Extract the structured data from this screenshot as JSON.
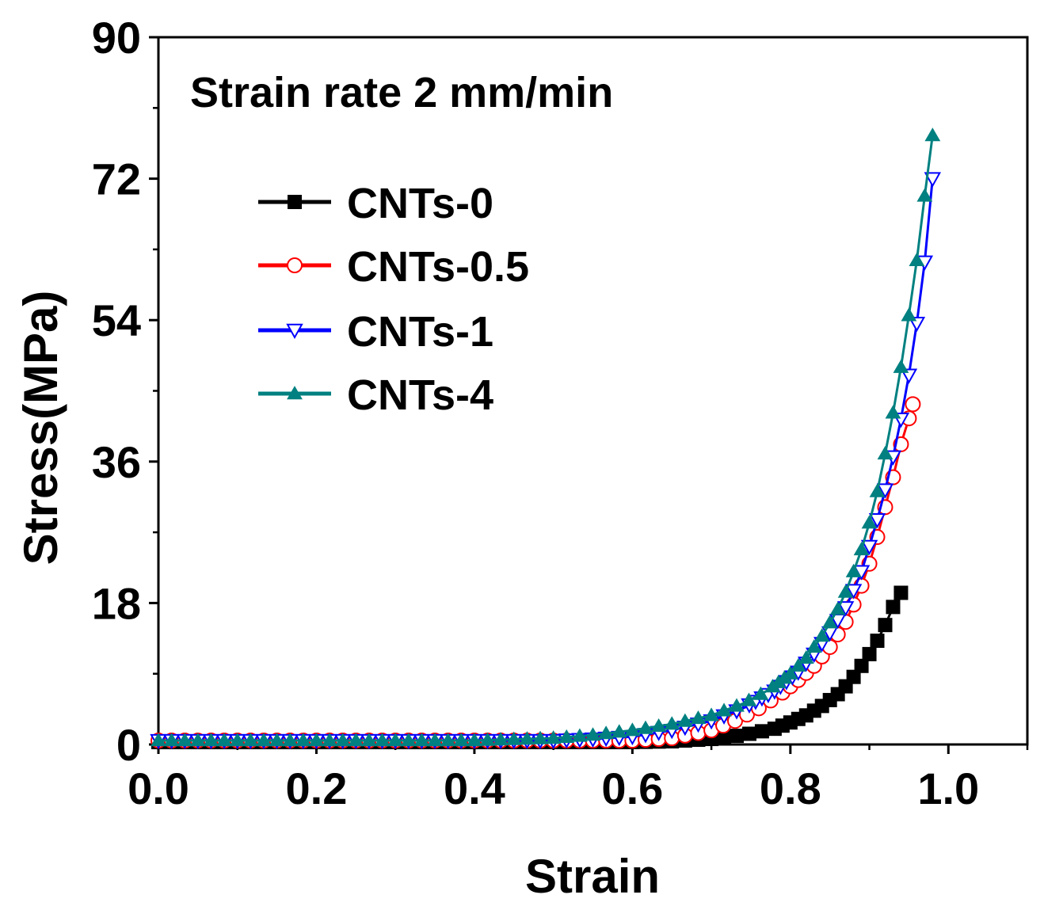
{
  "chart_data": {
    "type": "line",
    "title": "",
    "annotation": "Strain rate 2 mm/min",
    "xlabel": "Strain",
    "ylabel": "Stress(MPa)",
    "xlim": [
      0,
      1.1
    ],
    "ylim": [
      0,
      90
    ],
    "x_ticks": [
      "0.0",
      "0.2",
      "0.4",
      "0.6",
      "0.8",
      "1.0"
    ],
    "y_ticks": [
      "0",
      "18",
      "36",
      "54",
      "72",
      "90"
    ],
    "legend_position": "upper-left",
    "series": [
      {
        "name": "CNTs-0",
        "color": "#000000",
        "marker": "square-filled",
        "x": [
          0,
          0.1,
          0.2,
          0.3,
          0.4,
          0.5,
          0.55,
          0.6,
          0.65,
          0.7,
          0.74,
          0.78,
          0.8,
          0.82,
          0.84,
          0.86,
          0.87,
          0.88,
          0.89,
          0.9,
          0.91,
          0.92,
          0.93,
          0.94
        ],
        "y": [
          0.3,
          0.3,
          0.3,
          0.3,
          0.3,
          0.3,
          0.3,
          0.3,
          0.4,
          0.7,
          1.2,
          2,
          2.8,
          3.7,
          4.9,
          6.4,
          7.4,
          8.6,
          10,
          11.5,
          13.2,
          15.2,
          17.5,
          19.3
        ]
      },
      {
        "name": "CNTs-0.5",
        "color": "#ff0000",
        "marker": "circle-open",
        "x": [
          0,
          0.1,
          0.2,
          0.3,
          0.4,
          0.5,
          0.55,
          0.6,
          0.65,
          0.7,
          0.73,
          0.76,
          0.79,
          0.81,
          0.83,
          0.85,
          0.87,
          0.88,
          0.89,
          0.9,
          0.91,
          0.92,
          0.93,
          0.94,
          0.95,
          0.955
        ],
        "y": [
          0.5,
          0.5,
          0.5,
          0.5,
          0.5,
          0.5,
          0.5,
          0.5,
          0.8,
          1.8,
          3,
          4.6,
          6.6,
          8.2,
          10,
          12.4,
          15.6,
          17.8,
          20.2,
          23,
          26.4,
          30.2,
          34,
          38.2,
          41.5,
          43.3
        ]
      },
      {
        "name": "CNTs-1",
        "color": "#0000ff",
        "marker": "triangle-down-open",
        "x": [
          0,
          0.1,
          0.2,
          0.3,
          0.4,
          0.5,
          0.55,
          0.6,
          0.65,
          0.7,
          0.74,
          0.78,
          0.81,
          0.83,
          0.85,
          0.87,
          0.88,
          0.89,
          0.9,
          0.91,
          0.92,
          0.93,
          0.94,
          0.95,
          0.96,
          0.97,
          0.98
        ],
        "y": [
          0.5,
          0.5,
          0.5,
          0.5,
          0.5,
          0.5,
          0.7,
          1,
          1.8,
          3,
          4.6,
          6.8,
          9.2,
          11.5,
          14.2,
          17.4,
          19.6,
          22,
          25.2,
          28.6,
          32.4,
          36.6,
          41.4,
          47,
          53.6,
          61.4,
          72
        ]
      },
      {
        "name": "CNTs-4",
        "color": "#008080",
        "marker": "triangle-up-filled",
        "x": [
          0,
          0.1,
          0.2,
          0.3,
          0.4,
          0.5,
          0.55,
          0.6,
          0.65,
          0.7,
          0.74,
          0.77,
          0.8,
          0.82,
          0.84,
          0.86,
          0.87,
          0.88,
          0.89,
          0.9,
          0.91,
          0.92,
          0.93,
          0.94,
          0.95,
          0.96,
          0.97,
          0.98
        ],
        "y": [
          0.5,
          0.5,
          0.5,
          0.5,
          0.5,
          0.8,
          1.2,
          1.8,
          2.6,
          3.7,
          5.2,
          6.8,
          9,
          11,
          13.8,
          17.2,
          19.4,
          22,
          24.8,
          28.2,
          32.2,
          37,
          42.2,
          48,
          54.6,
          61.6,
          69.8,
          77.5
        ]
      }
    ]
  }
}
